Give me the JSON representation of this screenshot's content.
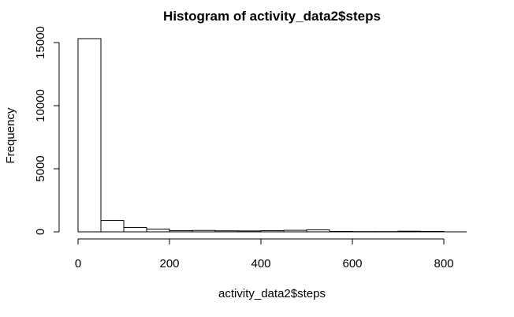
{
  "chart_data": {
    "type": "bar",
    "title": "Histogram of activity_data2$steps",
    "xlabel": "activity_data2$steps",
    "ylabel": "Frequency",
    "bin_edges": [
      0,
      50,
      100,
      150,
      200,
      250,
      300,
      350,
      400,
      450,
      500,
      550,
      600,
      650,
      700,
      750,
      800
    ],
    "values": [
      15310,
      900,
      340,
      220,
      90,
      110,
      80,
      70,
      90,
      120,
      160,
      30,
      20,
      20,
      50,
      30
    ],
    "xlim": [
      0,
      850
    ],
    "ylim": [
      0,
      15400
    ],
    "x_ticks": [
      0,
      200,
      400,
      600,
      800
    ],
    "y_ticks": [
      0,
      5000,
      10000,
      15000
    ],
    "grid": false,
    "legend": "none"
  }
}
